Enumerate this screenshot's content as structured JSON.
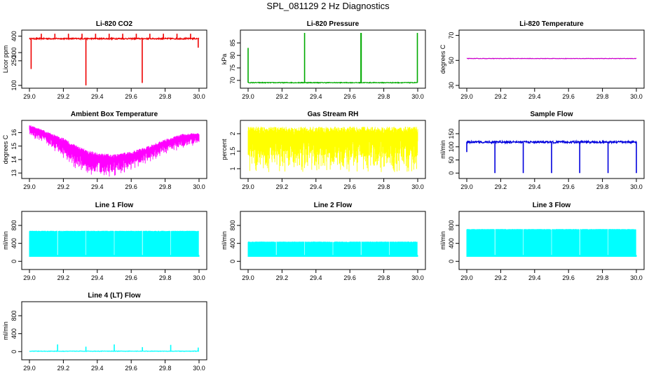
{
  "figure_title": "SPL_081129  2 Hz Diagnostics",
  "chart_data": [
    {
      "type": "line",
      "id": "co2",
      "title": "Li-820 CO2",
      "ylabel": "Licor ppm",
      "xlabel": "",
      "xlim": [
        29.0,
        30.0
      ],
      "ylim": [
        100,
        420
      ],
      "yticks": [
        100,
        250,
        300,
        400
      ],
      "xticks": [
        "29.0",
        "29.2",
        "29.4",
        "29.6",
        "29.8",
        "30.0"
      ],
      "color": "#ee0000",
      "series": [
        {
          "name": "Li-820 CO2",
          "baseline": 385,
          "noise": 4,
          "spikes": [
            {
              "x": 29.01,
              "y": 200
            },
            {
              "x": 29.07,
              "y": 415
            },
            {
              "x": 29.15,
              "y": 415
            },
            {
              "x": 29.23,
              "y": 415
            },
            {
              "x": 29.31,
              "y": 415
            },
            {
              "x": 29.333,
              "y": 100
            },
            {
              "x": 29.39,
              "y": 415
            },
            {
              "x": 29.47,
              "y": 415
            },
            {
              "x": 29.55,
              "y": 415
            },
            {
              "x": 29.63,
              "y": 415
            },
            {
              "x": 29.665,
              "y": 115
            },
            {
              "x": 29.71,
              "y": 415
            },
            {
              "x": 29.79,
              "y": 415
            },
            {
              "x": 29.87,
              "y": 415
            },
            {
              "x": 29.95,
              "y": 415
            },
            {
              "x": 29.995,
              "y": 330
            }
          ]
        }
      ]
    },
    {
      "type": "line",
      "id": "pressure",
      "title": "Li-820 Pressure",
      "ylabel": "kPa",
      "xlabel": "",
      "xlim": [
        29.0,
        30.0
      ],
      "ylim": [
        68,
        89
      ],
      "yticks": [
        70,
        75,
        80,
        85
      ],
      "xticks": [
        "29.0",
        "29.2",
        "29.4",
        "29.6",
        "29.8",
        "30.0"
      ],
      "color": "#00aa00",
      "series": [
        {
          "name": "Li-820 Pressure",
          "baseline": 69.1,
          "noise": 0.15,
          "spikes": [
            {
              "x": 29.0,
              "y": 83
            },
            {
              "x": 29.333,
              "y": 89
            },
            {
              "x": 29.665,
              "y": 89
            },
            {
              "x": 29.667,
              "y": 89
            },
            {
              "x": 29.998,
              "y": 89
            }
          ]
        }
      ]
    },
    {
      "type": "line",
      "id": "temperature",
      "title": "Li-820 Temperature",
      "ylabel": "degrees C",
      "xlabel": "",
      "xlim": [
        29.0,
        30.0
      ],
      "ylim": [
        30,
        72
      ],
      "yticks": [
        30,
        50,
        70
      ],
      "xticks": [
        "29.0",
        "29.2",
        "29.4",
        "29.6",
        "29.8",
        "30.0"
      ],
      "color": "#cc00cc",
      "series": [
        {
          "name": "Li-820 Temperature",
          "baseline": 51.5,
          "noise": 0.15,
          "spikes": []
        }
      ]
    },
    {
      "type": "area",
      "id": "ambient",
      "title": "Ambient Box Temperature",
      "ylabel": "degrees C",
      "xlabel": "",
      "xlim": [
        29.0,
        30.0
      ],
      "ylim": [
        12.8,
        16.7
      ],
      "yticks": [
        13,
        14,
        15,
        16
      ],
      "xticks": [
        "29.0",
        "29.2",
        "29.4",
        "29.6",
        "29.8",
        "30.0"
      ],
      "color": "#ff00ff",
      "series": [
        {
          "name": "Ambient Box Temperature",
          "upper": [
            [
              29.0,
              16.6
            ],
            [
              29.1,
              16.1
            ],
            [
              29.2,
              15.6
            ],
            [
              29.3,
              14.9
            ],
            [
              29.4,
              14.5
            ],
            [
              29.5,
              14.4
            ],
            [
              29.6,
              14.6
            ],
            [
              29.7,
              15.0
            ],
            [
              29.8,
              15.5
            ],
            [
              29.9,
              15.9
            ],
            [
              30.0,
              16.0
            ]
          ],
          "lower": [
            [
              29.0,
              15.9
            ],
            [
              29.1,
              15.3
            ],
            [
              29.2,
              14.4
            ],
            [
              29.3,
              13.4
            ],
            [
              29.4,
              13.0
            ],
            [
              29.5,
              13.1
            ],
            [
              29.6,
              13.5
            ],
            [
              29.7,
              14.0
            ],
            [
              29.8,
              14.6
            ],
            [
              29.9,
              15.0
            ],
            [
              30.0,
              15.3
            ]
          ]
        }
      ]
    },
    {
      "type": "area",
      "id": "rh",
      "title": "Gas Stream RH",
      "ylabel": "percent",
      "xlabel": "",
      "xlim": [
        29.0,
        30.0
      ],
      "ylim": [
        0.8,
        2.3
      ],
      "yticks": [
        1.0,
        1.5,
        2.0
      ],
      "xticks": [
        "29.0",
        "29.2",
        "29.4",
        "29.6",
        "29.8",
        "30.0"
      ],
      "color": "#ffff00",
      "series": [
        {
          "name": "Gas Stream RH",
          "upper": [
            [
              29.0,
              2.2
            ],
            [
              30.0,
              2.2
            ]
          ],
          "lower": [
            [
              29.0,
              1.3
            ],
            [
              30.0,
              1.3
            ]
          ],
          "min": 0.9
        }
      ]
    },
    {
      "type": "line",
      "id": "sample",
      "title": "Sample Flow",
      "ylabel": "ml/min",
      "xlabel": "",
      "xlim": [
        29.0,
        30.0
      ],
      "ylim": [
        -10,
        190
      ],
      "yticks": [
        0,
        50,
        100,
        150
      ],
      "xticks": [
        "29.0",
        "29.2",
        "29.4",
        "29.6",
        "29.8",
        "30.0"
      ],
      "color": "#0000dd",
      "series": [
        {
          "name": "Sample Flow",
          "baseline": 118,
          "noise": 4,
          "spikes": [
            {
              "x": 29.0,
              "y": 80
            },
            {
              "x": 29.166,
              "y": 0
            },
            {
              "x": 29.333,
              "y": 0
            },
            {
              "x": 29.5,
              "y": 0
            },
            {
              "x": 29.666,
              "y": 0
            },
            {
              "x": 29.833,
              "y": 0
            },
            {
              "x": 30.0,
              "y": 0
            }
          ]
        }
      ]
    },
    {
      "type": "area",
      "id": "line1",
      "title": "Line 1 Flow",
      "ylabel": "ml/min",
      "xlabel": "",
      "xlim": [
        29.0,
        30.0
      ],
      "ylim": [
        -120,
        1050
      ],
      "yticks": [
        0,
        400,
        800
      ],
      "xticks": [
        "29.0",
        "29.2",
        "29.4",
        "29.6",
        "29.8",
        "30.0"
      ],
      "color": "#00ffff",
      "series": [
        {
          "name": "Line 1 Flow",
          "high": 680,
          "low": 100,
          "gaps": [
            29.166,
            29.333,
            29.5,
            29.666,
            29.833,
            30.0
          ]
        }
      ]
    },
    {
      "type": "area",
      "id": "line2",
      "title": "Line 2 Flow",
      "ylabel": "ml/min",
      "xlabel": "",
      "xlim": [
        29.0,
        30.0
      ],
      "ylim": [
        -120,
        1050
      ],
      "yticks": [
        0,
        400,
        800
      ],
      "xticks": [
        "29.0",
        "29.2",
        "29.4",
        "29.6",
        "29.8",
        "30.0"
      ],
      "color": "#00ffff",
      "series": [
        {
          "name": "Line 2 Flow",
          "high": 440,
          "low": 100,
          "gaps": [
            29.166,
            29.333,
            29.5,
            29.666,
            29.833,
            30.0
          ]
        }
      ]
    },
    {
      "type": "area",
      "id": "line3",
      "title": "Line 3 Flow",
      "ylabel": "ml/min",
      "xlabel": "",
      "xlim": [
        29.0,
        30.0
      ],
      "ylim": [
        -120,
        1050
      ],
      "yticks": [
        0,
        400,
        800
      ],
      "xticks": [
        "29.0",
        "29.2",
        "29.4",
        "29.6",
        "29.8",
        "30.0"
      ],
      "color": "#00ffff",
      "series": [
        {
          "name": "Line 3 Flow",
          "high": 720,
          "low": 100,
          "gaps": [
            29.166,
            29.333,
            29.5,
            29.666,
            29.833,
            30.0
          ]
        }
      ]
    },
    {
      "type": "line",
      "id": "line4",
      "title": "Line 4 (LT) Flow",
      "ylabel": "ml/min",
      "xlabel": "",
      "xlim": [
        29.0,
        30.0
      ],
      "ylim": [
        -120,
        1050
      ],
      "yticks": [
        0,
        400,
        800
      ],
      "xticks": [
        "29.0",
        "29.2",
        "29.4",
        "29.6",
        "29.8",
        "30.0"
      ],
      "color": "#00ffff",
      "series": [
        {
          "name": "Line 4 (LT) Flow",
          "baseline": 10,
          "noise": 5,
          "spikes": [
            {
              "x": 29.166,
              "y": 160
            },
            {
              "x": 29.333,
              "y": 110
            },
            {
              "x": 29.5,
              "y": 160
            },
            {
              "x": 29.666,
              "y": 100
            },
            {
              "x": 29.833,
              "y": 150
            },
            {
              "x": 29.995,
              "y": 90
            }
          ]
        }
      ]
    }
  ]
}
